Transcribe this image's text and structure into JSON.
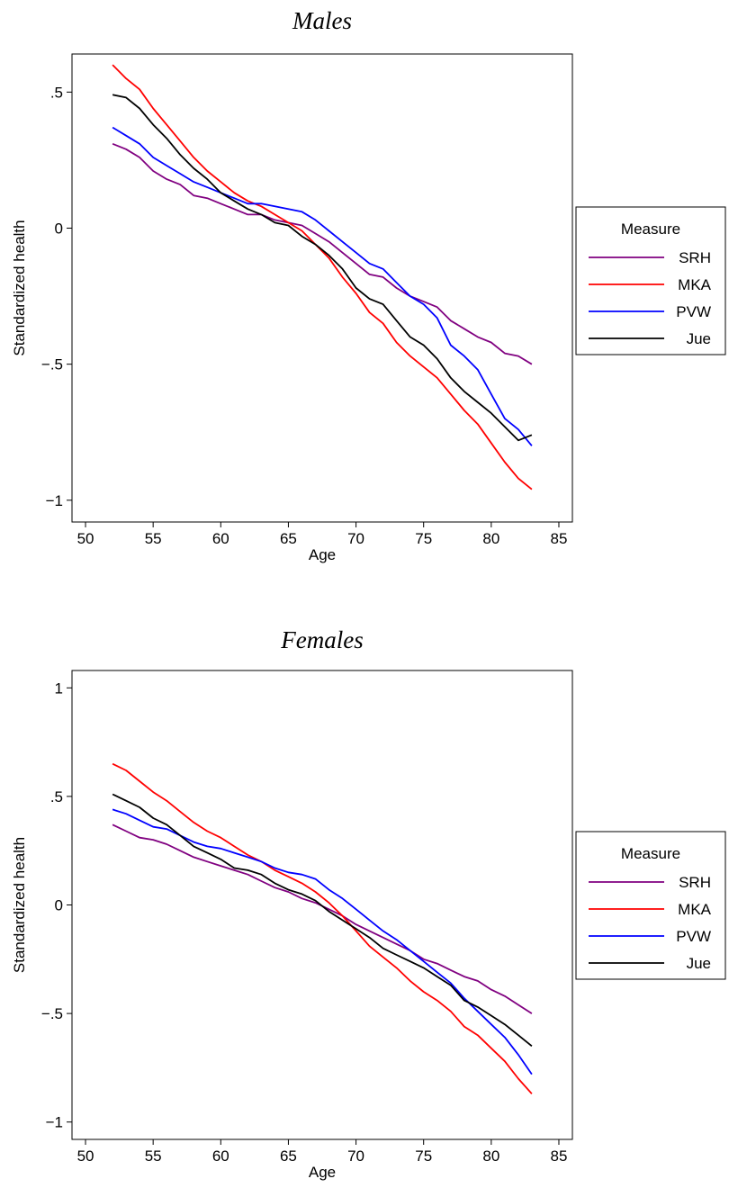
{
  "chart_data": [
    {
      "type": "line",
      "title": "Males",
      "xlabel": "Age",
      "ylabel": "Standardized health",
      "xlim": [
        49,
        86
      ],
      "ylim": [
        -1.08,
        0.64
      ],
      "xticks": [
        50,
        55,
        60,
        65,
        70,
        75,
        80,
        85
      ],
      "yticks": [
        -1,
        -0.5,
        0,
        0.5
      ],
      "yticklabels": [
        "−1",
        "−.5",
        "0",
        ".5"
      ],
      "grid": false,
      "legend": {
        "title": "Measure",
        "position": "right"
      },
      "x": [
        52,
        53,
        54,
        55,
        56,
        57,
        58,
        59,
        60,
        61,
        62,
        63,
        64,
        65,
        66,
        67,
        68,
        69,
        70,
        71,
        72,
        73,
        74,
        75,
        76,
        77,
        78,
        79,
        80,
        81,
        82,
        83
      ],
      "series": [
        {
          "name": "SRH",
          "color": "#800080",
          "values": [
            0.31,
            0.29,
            0.26,
            0.21,
            0.18,
            0.16,
            0.12,
            0.11,
            0.09,
            0.07,
            0.05,
            0.05,
            0.03,
            0.02,
            0.01,
            -0.02,
            -0.05,
            -0.09,
            -0.13,
            -0.17,
            -0.18,
            -0.22,
            -0.25,
            -0.27,
            -0.29,
            -0.34,
            -0.37,
            -0.4,
            -0.42,
            -0.46,
            -0.47,
            -0.5
          ]
        },
        {
          "name": "MKA",
          "color": "#ff0000",
          "values": [
            0.6,
            0.55,
            0.51,
            0.44,
            0.38,
            0.32,
            0.26,
            0.21,
            0.17,
            0.13,
            0.1,
            0.08,
            0.05,
            0.02,
            -0.01,
            -0.06,
            -0.11,
            -0.18,
            -0.24,
            -0.31,
            -0.35,
            -0.42,
            -0.47,
            -0.51,
            -0.55,
            -0.61,
            -0.67,
            -0.72,
            -0.79,
            -0.86,
            -0.92,
            -0.96
          ]
        },
        {
          "name": "PVW",
          "color": "#0000ff",
          "values": [
            0.37,
            0.34,
            0.31,
            0.26,
            0.23,
            0.2,
            0.17,
            0.15,
            0.13,
            0.11,
            0.09,
            0.09,
            0.08,
            0.07,
            0.06,
            0.03,
            -0.01,
            -0.05,
            -0.09,
            -0.13,
            -0.15,
            -0.2,
            -0.25,
            -0.28,
            -0.33,
            -0.43,
            -0.47,
            -0.52,
            -0.61,
            -0.7,
            -0.74,
            -0.8
          ]
        },
        {
          "name": "Jue",
          "color": "#000000",
          "values": [
            0.49,
            0.48,
            0.44,
            0.38,
            0.33,
            0.27,
            0.22,
            0.18,
            0.13,
            0.1,
            0.07,
            0.05,
            0.02,
            0.01,
            -0.03,
            -0.06,
            -0.1,
            -0.15,
            -0.22,
            -0.26,
            -0.28,
            -0.34,
            -0.4,
            -0.43,
            -0.48,
            -0.55,
            -0.6,
            -0.64,
            -0.68,
            -0.73,
            -0.78,
            -0.76
          ]
        }
      ]
    },
    {
      "type": "line",
      "title": "Females",
      "xlabel": "Age",
      "ylabel": "Standardized health",
      "xlim": [
        49,
        86
      ],
      "ylim": [
        -1.08,
        1.08
      ],
      "xticks": [
        50,
        55,
        60,
        65,
        70,
        75,
        80,
        85
      ],
      "yticks": [
        -1,
        -0.5,
        0,
        0.5,
        1
      ],
      "yticklabels": [
        "−1",
        "−.5",
        "0",
        ".5",
        "1"
      ],
      "grid": false,
      "legend": {
        "title": "Measure",
        "position": "right"
      },
      "x": [
        52,
        53,
        54,
        55,
        56,
        57,
        58,
        59,
        60,
        61,
        62,
        63,
        64,
        65,
        66,
        67,
        68,
        69,
        70,
        71,
        72,
        73,
        74,
        75,
        76,
        77,
        78,
        79,
        80,
        81,
        82,
        83
      ],
      "series": [
        {
          "name": "SRH",
          "color": "#800080",
          "values": [
            0.37,
            0.34,
            0.31,
            0.3,
            0.28,
            0.25,
            0.22,
            0.2,
            0.18,
            0.16,
            0.14,
            0.11,
            0.08,
            0.06,
            0.03,
            0.01,
            -0.02,
            -0.05,
            -0.09,
            -0.12,
            -0.15,
            -0.18,
            -0.21,
            -0.25,
            -0.27,
            -0.3,
            -0.33,
            -0.35,
            -0.39,
            -0.42,
            -0.46,
            -0.5
          ]
        },
        {
          "name": "MKA",
          "color": "#ff0000",
          "values": [
            0.65,
            0.62,
            0.57,
            0.52,
            0.48,
            0.43,
            0.38,
            0.34,
            0.31,
            0.27,
            0.23,
            0.2,
            0.16,
            0.13,
            0.1,
            0.06,
            0.01,
            -0.05,
            -0.12,
            -0.19,
            -0.24,
            -0.29,
            -0.35,
            -0.4,
            -0.44,
            -0.49,
            -0.56,
            -0.6,
            -0.66,
            -0.72,
            -0.8,
            -0.87
          ]
        },
        {
          "name": "PVW",
          "color": "#0000ff",
          "values": [
            0.44,
            0.42,
            0.39,
            0.36,
            0.35,
            0.32,
            0.29,
            0.27,
            0.26,
            0.24,
            0.22,
            0.2,
            0.17,
            0.15,
            0.14,
            0.12,
            0.07,
            0.03,
            -0.02,
            -0.07,
            -0.12,
            -0.16,
            -0.21,
            -0.26,
            -0.31,
            -0.36,
            -0.43,
            -0.49,
            -0.55,
            -0.61,
            -0.69,
            -0.78
          ]
        },
        {
          "name": "Jue",
          "color": "#000000",
          "values": [
            0.51,
            0.48,
            0.45,
            0.4,
            0.37,
            0.32,
            0.27,
            0.24,
            0.21,
            0.17,
            0.16,
            0.14,
            0.1,
            0.07,
            0.05,
            0.02,
            -0.03,
            -0.07,
            -0.11,
            -0.15,
            -0.2,
            -0.23,
            -0.26,
            -0.29,
            -0.33,
            -0.37,
            -0.44,
            -0.47,
            -0.51,
            -0.55,
            -0.6,
            -0.65
          ]
        }
      ]
    }
  ]
}
